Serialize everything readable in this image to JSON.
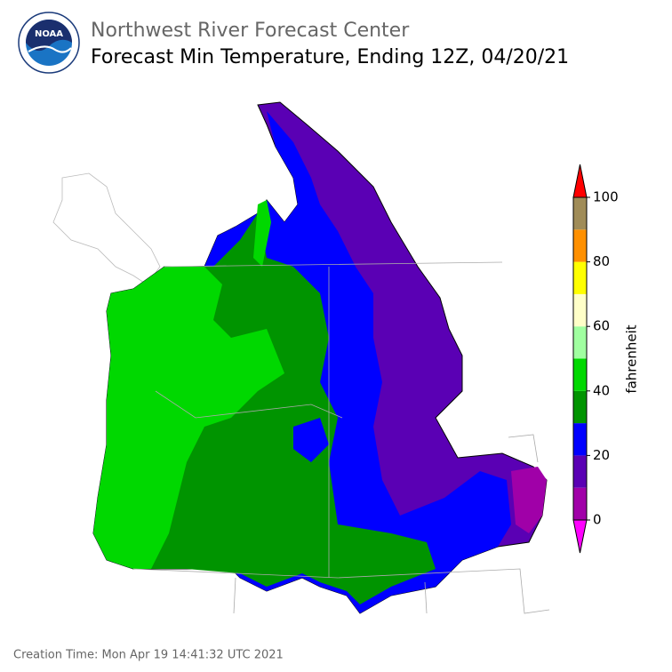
{
  "header": {
    "logo_text": "NOAA",
    "title": "Northwest River Forecast Center",
    "subtitle": "Forecast Min Temperature, Ending 12Z, 04/20/21"
  },
  "colorbar": {
    "label": "fahrenheit",
    "ticks": [
      0,
      20,
      40,
      60,
      80,
      100
    ],
    "colors": [
      "#a000a8",
      "#5a00b4",
      "#0000ff",
      "#009400",
      "#00d800",
      "#a0ffa0",
      "#ffffc8",
      "#ffff00",
      "#ff9000",
      "#a08c58"
    ],
    "under_color": "#ff00ff",
    "over_color": "#ff0000"
  },
  "footer": {
    "creation_time": "Creation Time: Mon Apr 19 14:41:32 UTC 2021"
  }
}
